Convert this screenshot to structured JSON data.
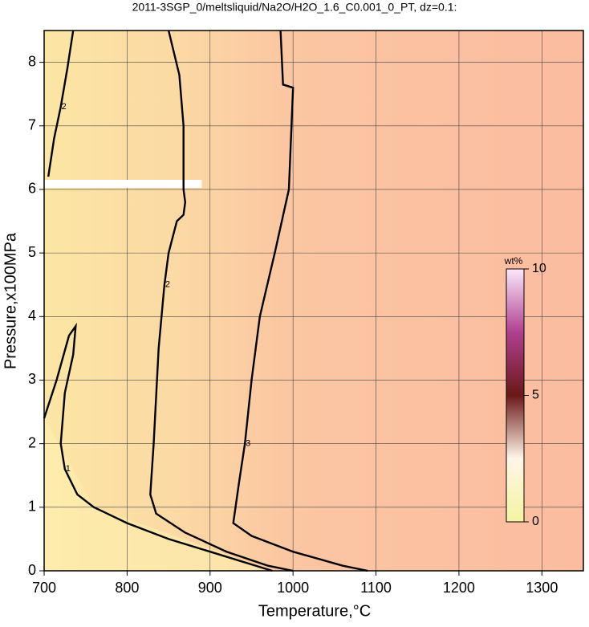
{
  "chart_data": {
    "type": "contour",
    "title": "2011-3SGP_0/meltsliquid/Na2O/H2O_1.6_C0.001_0_PT, dz=0.1:",
    "x_label": "Temperature,°C",
    "y_label": "Pressure,x100MPa",
    "xlim": [
      700,
      1350
    ],
    "ylim": [
      0,
      8.5
    ],
    "xticks": [
      700,
      800,
      900,
      1000,
      1100,
      1200,
      1300
    ],
    "yticks": [
      0,
      1,
      2,
      3,
      4,
      5,
      6,
      7,
      8
    ],
    "grid": true,
    "contours": [
      {
        "level": 1,
        "x": [
          700,
          715,
          730,
          738,
          735,
          725,
          720,
          725,
          740,
          760,
          800,
          850,
          900,
          950,
          975
        ],
        "y": [
          2.4,
          3.0,
          3.7,
          3.85,
          3.4,
          2.8,
          2.0,
          1.6,
          1.2,
          1.0,
          0.75,
          0.5,
          0.3,
          0.1,
          0
        ]
      },
      {
        "level": 2,
        "x": [
          705,
          712,
          720,
          728,
          735
        ],
        "y": [
          6.2,
          6.8,
          7.3,
          7.9,
          8.5
        ]
      },
      {
        "level": 2,
        "x": [
          850,
          863,
          868,
          868,
          870,
          868,
          860,
          850,
          845,
          838,
          832,
          828,
          835,
          870,
          920,
          970,
          1000
        ],
        "y": [
          8.5,
          7.8,
          7.0,
          6.0,
          5.8,
          5.6,
          5.5,
          5.0,
          4.5,
          3.5,
          2.0,
          1.2,
          0.9,
          0.6,
          0.3,
          0.08,
          0
        ]
      },
      {
        "level": 3,
        "x": [
          985,
          988,
          1000,
          995,
          978,
          960,
          950,
          942,
          935,
          928,
          950,
          1000,
          1060,
          1090
        ],
        "y": [
          8.5,
          7.65,
          7.6,
          6.0,
          5.0,
          4.0,
          3.0,
          2.0,
          1.4,
          0.75,
          0.55,
          0.3,
          0.08,
          0
        ]
      }
    ],
    "colorbar": {
      "label": "wt%",
      "lim": [
        0,
        10
      ],
      "ticks": [
        0,
        5,
        10
      ]
    }
  }
}
